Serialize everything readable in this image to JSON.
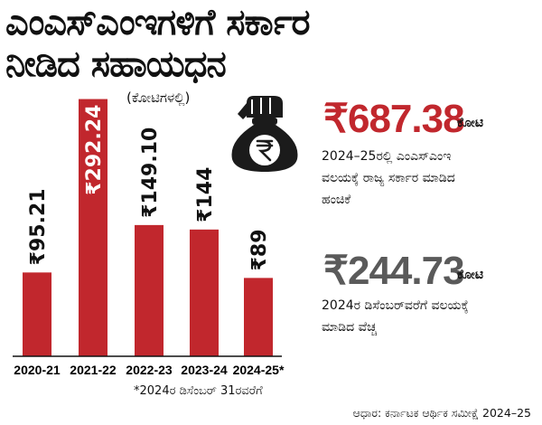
{
  "header": {
    "title_line1": "ಎಂಎಸ್‌ಎಂಇಗಳಿಗೆ ಸರ್ಕಾರ",
    "title_line2": "ನೀಡಿದ ಸಹಾಯಧನ",
    "unit_note": "(ಕೋಟಿಗಳಲ್ಲಿ)"
  },
  "chart_data": {
    "type": "bar",
    "categories": [
      "2020-21",
      "2021-22",
      "2022-23",
      "2023-24",
      "2024-25*"
    ],
    "values": [
      95.21,
      292.24,
      149.1,
      144,
      89
    ],
    "data_labels": [
      "₹95.21",
      "₹292.24",
      "₹149.10",
      "₹144",
      "₹89"
    ],
    "ylim": [
      0,
      300
    ],
    "grid": false,
    "bar_color": "#c1272d"
  },
  "footnote": "*2024ರ ಡಿಸೆಂಬರ್ 31ರವರೆಗೆ",
  "stats": [
    {
      "value": "₹687.38",
      "unit": "ಕೋಟಿ",
      "desc_lines": [
        "2024–25ರಲ್ಲಿ ಎಂಎಸ್‌ಎಂಇ",
        "ವಲಯಕ್ಕೆ ರಾಜ್ಯ ಸರ್ಕಾರ ಮಾಡಿದ",
        "ಹಂಚಿಕೆ"
      ],
      "color": "#c1272d"
    },
    {
      "value": "₹244.73",
      "unit": "ಕೋಟಿ",
      "desc_lines": [
        "2024ರ ಡಿಸೆಂಬರ್‌ವರೆಗೆ ವಲಯಕ್ಕೆ",
        "ಮಾಡಿದ ವೆಚ್ಚ"
      ],
      "color": "#5a5a5a"
    }
  ],
  "source": "ಆಧಾರ: ಕರ್ನಾಟಕ ಆರ್ಥಿಕ ಸಮೀಕ್ಷೆ 2024–25",
  "icons": {
    "money_bag": "money-bag-rupee-icon"
  }
}
